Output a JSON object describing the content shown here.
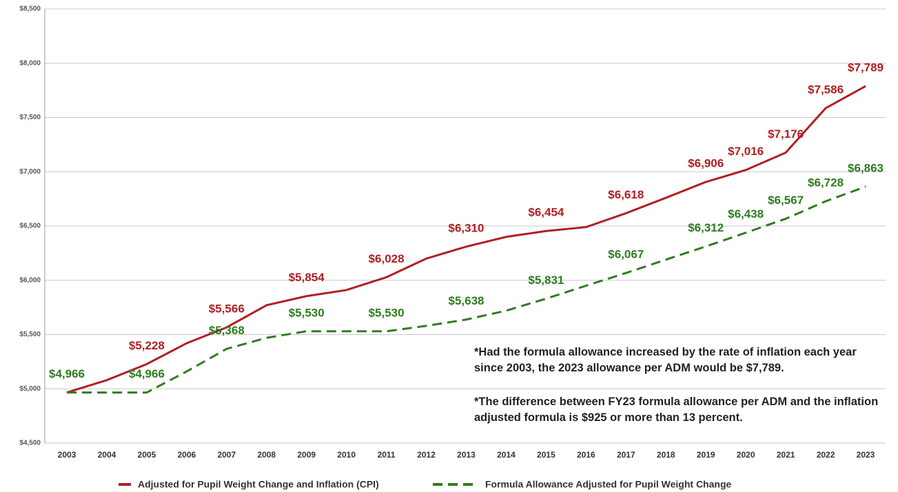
{
  "chart_data": {
    "type": "line",
    "categories": [
      "2003",
      "2004",
      "2005",
      "2006",
      "2007",
      "2008",
      "2009",
      "2010",
      "2011",
      "2012",
      "2013",
      "2014",
      "2015",
      "2016",
      "2017",
      "2018",
      "2019",
      "2020",
      "2021",
      "2022",
      "2023"
    ],
    "series": [
      {
        "name": "Adjusted for Pupil Weight Change and Inflation (CPI)",
        "color": "#b01f24",
        "linestyle": "solid",
        "values": [
          4966,
          5080,
          5228,
          5420,
          5566,
          5770,
          5854,
          5910,
          6028,
          6200,
          6310,
          6400,
          6454,
          6490,
          6618,
          6760,
          6906,
          7016,
          7176,
          7586,
          7789
        ],
        "value_labels": [
          null,
          null,
          "$5,228",
          null,
          "$5,566",
          null,
          "$5,854",
          null,
          "$6,028",
          null,
          "$6,310",
          null,
          "$6,454",
          null,
          "$6,618",
          null,
          "$6,906",
          "$7,016",
          "$7,176",
          "$7,586",
          "$7,789"
        ]
      },
      {
        "name": "Formula Allowance Adjusted for Pupil Weight Change",
        "color": "#2e7d1f",
        "linestyle": "dashed",
        "values": [
          4966,
          4966,
          4966,
          5160,
          5368,
          5470,
          5530,
          5530,
          5530,
          5580,
          5638,
          5720,
          5831,
          5950,
          6067,
          6190,
          6312,
          6438,
          6567,
          6728,
          6863
        ],
        "value_labels": [
          "$4,966",
          null,
          "$4,966",
          null,
          "$5,368",
          null,
          "$5,530",
          null,
          "$5,530",
          null,
          "$5,638",
          null,
          "$5,831",
          null,
          "$6,067",
          null,
          "$6,312",
          "$6,438",
          "$6,567",
          "$6,728",
          "$6,863"
        ]
      }
    ],
    "ylim": [
      4500,
      8500
    ],
    "yticks": [
      {
        "value": 4500,
        "label": "$4,500"
      },
      {
        "value": 5000,
        "label": "$5,000"
      },
      {
        "value": 5500,
        "label": "$5,500"
      },
      {
        "value": 6000,
        "label": "$6,000"
      },
      {
        "value": 6500,
        "label": "$6,500"
      },
      {
        "value": 7000,
        "label": "$7,000"
      },
      {
        "value": 7500,
        "label": "$7,500"
      },
      {
        "value": 8000,
        "label": "$8,000"
      },
      {
        "value": 8500,
        "label": "$8,500"
      }
    ],
    "grid": true,
    "annotations": [
      "*Had the formula allowance increased by the rate of inflation each year since 2003, the 2023 allowance per ADM would be $7,789.",
      "*The difference between FY23 formula allowance per ADM and the inflation adjusted formula is $925 or more than 13 percent."
    ]
  }
}
